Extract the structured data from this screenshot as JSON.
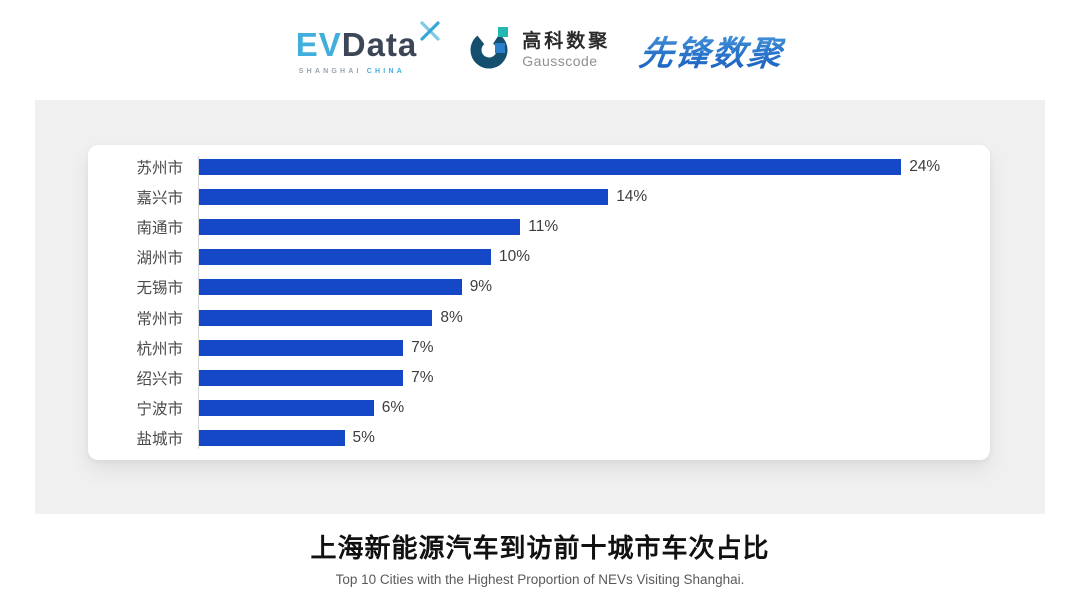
{
  "header": {
    "evdata": {
      "ev": "EV",
      "data": "Data",
      "sub_left": "SHANGHAI",
      "sub_right": "CHINA",
      "ev_color": "#41aedc",
      "data_color": "#3c4656"
    },
    "gausscode": {
      "cn": "高科数聚",
      "en": "Gausscode",
      "mark_arc_color": "#14506e",
      "mark_teal_color": "#23b8b0",
      "mark_blue_color": "#2a7fc8"
    },
    "pioneer": {
      "text": "先锋数聚",
      "color": "#2f7cce"
    }
  },
  "chart_data": {
    "type": "bar",
    "orientation": "horizontal",
    "title": "上海新能源汽车到访前十城市车次占比",
    "categories": [
      "苏州市",
      "嘉兴市",
      "南通市",
      "湖州市",
      "无锡市",
      "常州市",
      "杭州市",
      "绍兴市",
      "宁波市",
      "盐城市"
    ],
    "values": [
      24,
      14,
      11,
      10,
      9,
      8,
      7,
      7,
      6,
      5
    ],
    "value_labels": [
      "24%",
      "14%",
      "11%",
      "10%",
      "9%",
      "8%",
      "7%",
      "7%",
      "6%",
      "5%"
    ],
    "unit": "%",
    "bar_color": "#1448c6",
    "xlim": [
      0,
      26
    ],
    "grid": false,
    "legend": false,
    "axis_line_color": "#d8d8d8"
  },
  "footer": {
    "title": "上海新能源汽车到访前十城市车次占比",
    "subtitle": "Top 10 Cities with the Highest Proportion of  NEVs Visiting Shanghai."
  },
  "colors": {
    "panel_bg": "#f0f0f0",
    "card_bg": "#ffffff",
    "page_bg": "#ffffff"
  }
}
